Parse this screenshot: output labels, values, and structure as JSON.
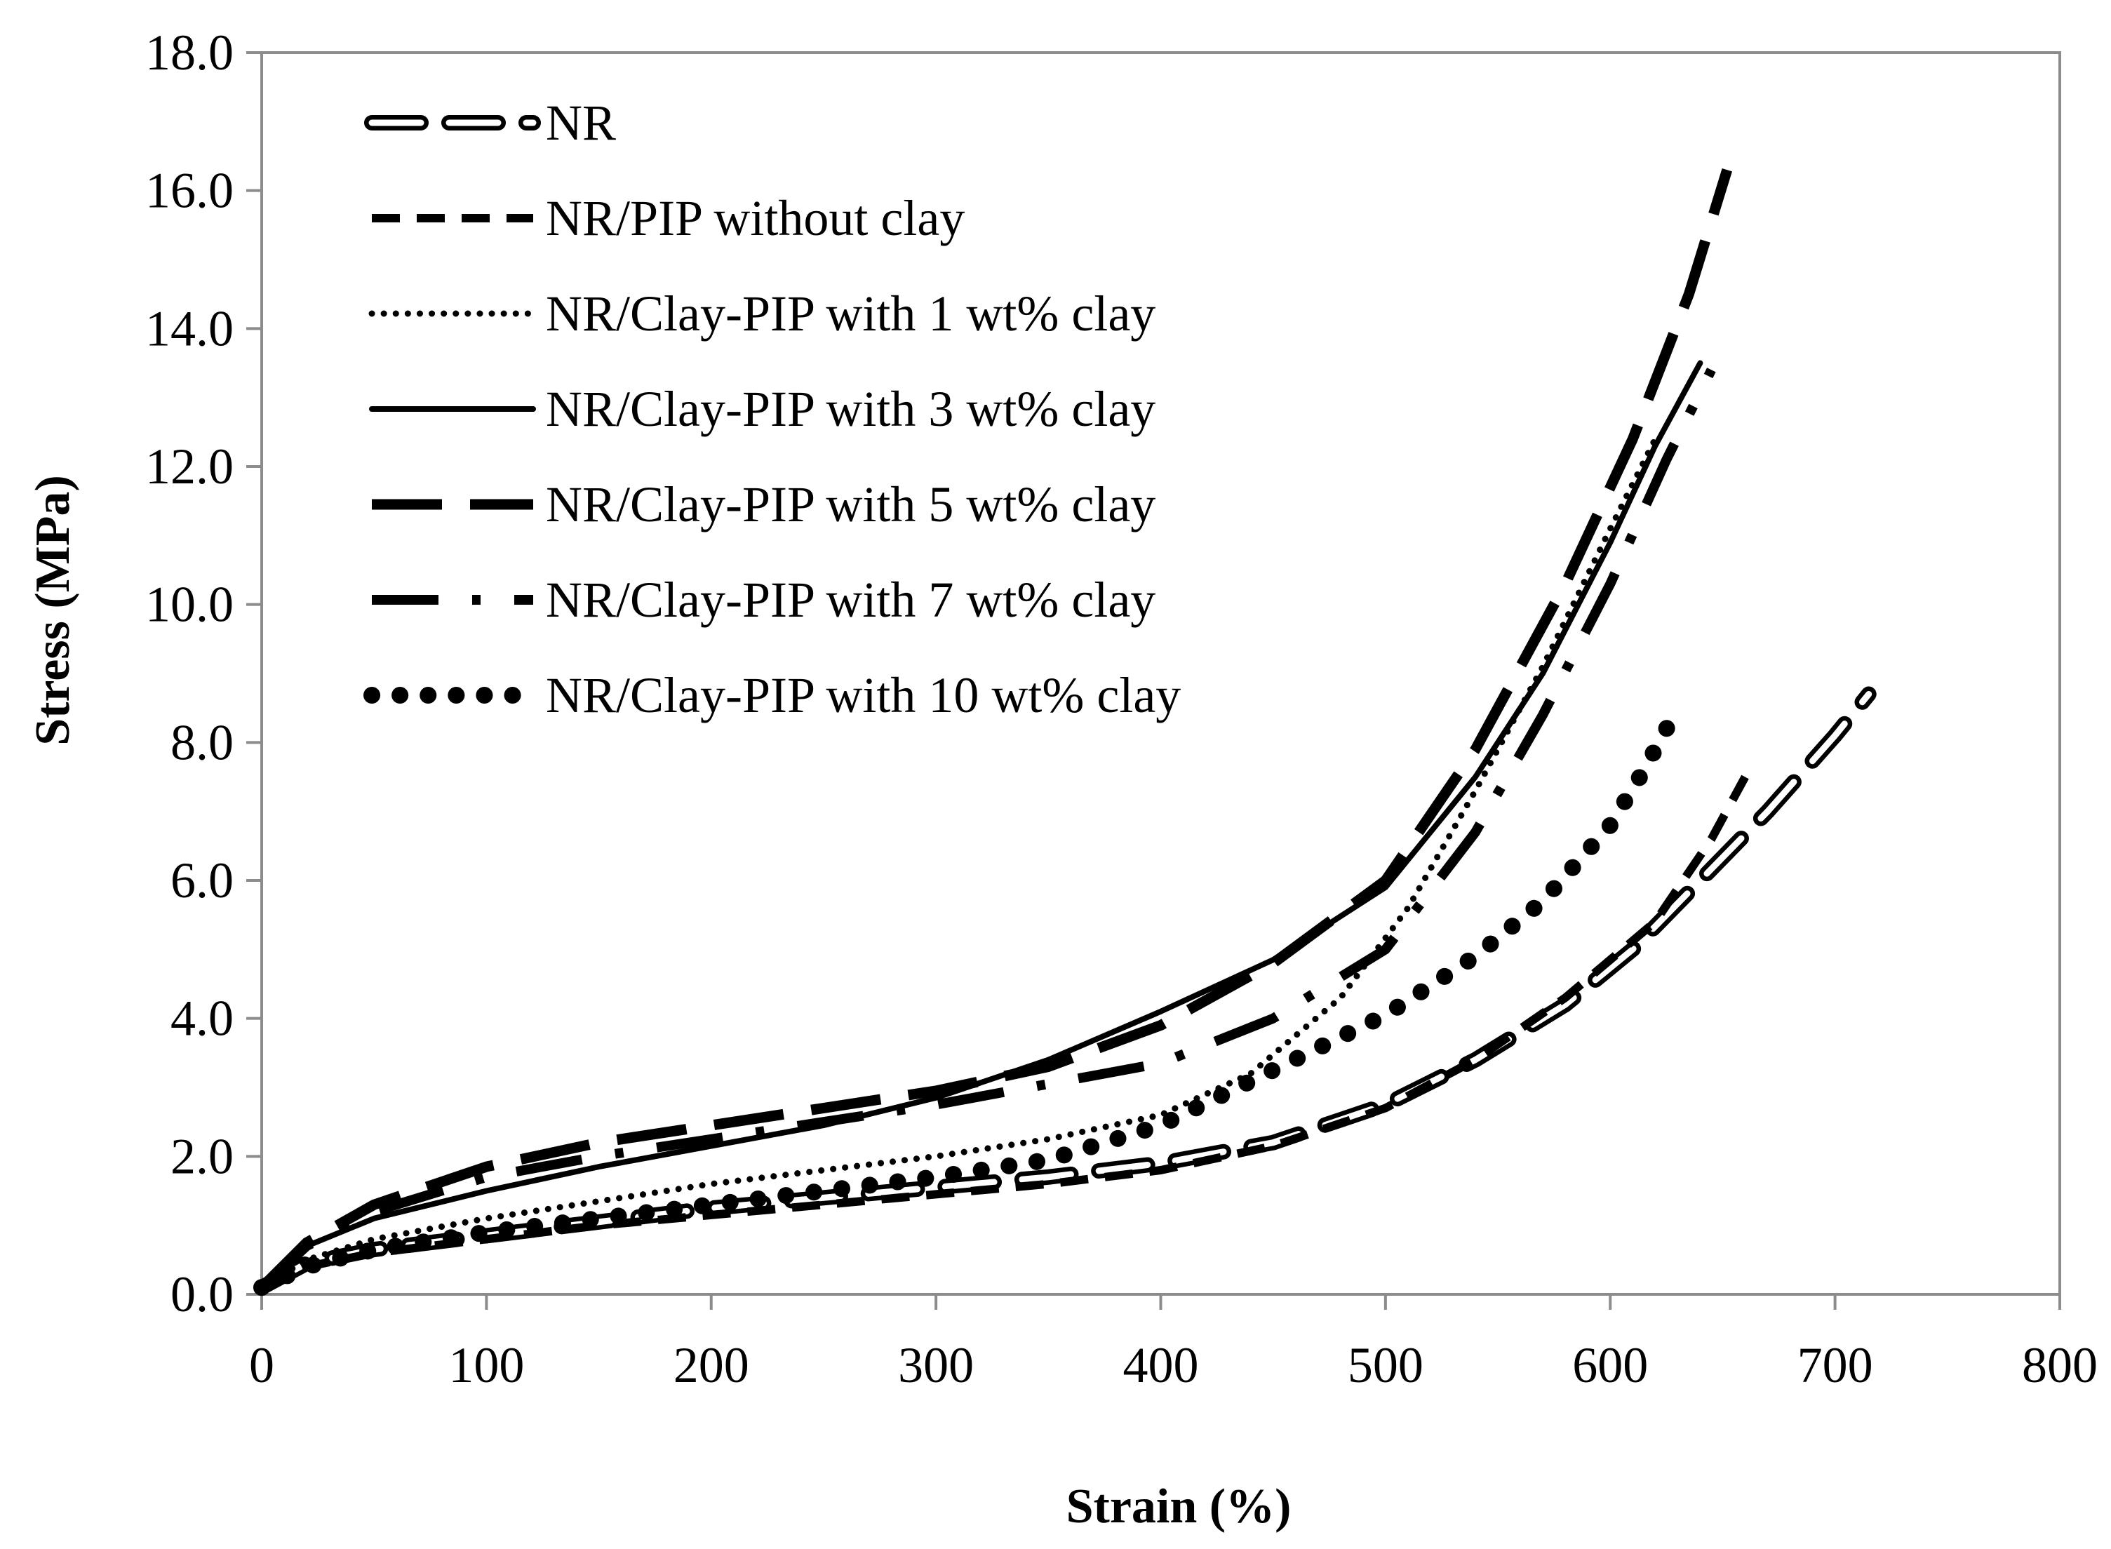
{
  "chart_data": {
    "type": "line",
    "title": "",
    "xlabel": "Strain (%)",
    "ylabel": "Stress (MPa)",
    "xlim": [
      0,
      800
    ],
    "ylim": [
      0,
      18
    ],
    "x_ticks": [
      "0",
      "100",
      "200",
      "300",
      "400",
      "500",
      "600",
      "700",
      "800"
    ],
    "y_ticks": [
      "0.0",
      "2.0",
      "4.0",
      "6.0",
      "8.0",
      "10.0",
      "12.0",
      "14.0",
      "16.0",
      "18.0"
    ],
    "grid": false,
    "legend_position": "top-left",
    "series": [
      {
        "name": "NR",
        "style": "open-dash",
        "points": [
          [
            0,
            0.1
          ],
          [
            20,
            0.45
          ],
          [
            50,
            0.65
          ],
          [
            100,
            0.85
          ],
          [
            150,
            1.05
          ],
          [
            200,
            1.25
          ],
          [
            250,
            1.4
          ],
          [
            300,
            1.55
          ],
          [
            350,
            1.7
          ],
          [
            400,
            1.9
          ],
          [
            450,
            2.2
          ],
          [
            500,
            2.75
          ],
          [
            540,
            3.4
          ],
          [
            580,
            4.2
          ],
          [
            610,
            5.0
          ],
          [
            640,
            6.0
          ],
          [
            670,
            7.0
          ],
          [
            700,
            8.1
          ],
          [
            715,
            8.7
          ]
        ]
      },
      {
        "name": "NR/PIP without clay",
        "style": "dash",
        "points": [
          [
            0,
            0.1
          ],
          [
            20,
            0.4
          ],
          [
            50,
            0.6
          ],
          [
            100,
            0.8
          ],
          [
            150,
            1.0
          ],
          [
            200,
            1.15
          ],
          [
            250,
            1.3
          ],
          [
            300,
            1.45
          ],
          [
            350,
            1.6
          ],
          [
            400,
            1.8
          ],
          [
            450,
            2.15
          ],
          [
            500,
            2.7
          ],
          [
            540,
            3.4
          ],
          [
            580,
            4.3
          ],
          [
            620,
            5.4
          ],
          [
            645,
            6.6
          ],
          [
            660,
            7.5
          ]
        ]
      },
      {
        "name": "NR/Clay-PIP with 1 wt% clay",
        "style": "dot",
        "points": [
          [
            0,
            0.1
          ],
          [
            20,
            0.5
          ],
          [
            50,
            0.8
          ],
          [
            100,
            1.1
          ],
          [
            150,
            1.35
          ],
          [
            200,
            1.6
          ],
          [
            250,
            1.8
          ],
          [
            300,
            2.0
          ],
          [
            350,
            2.25
          ],
          [
            400,
            2.6
          ],
          [
            440,
            3.2
          ],
          [
            480,
            4.3
          ],
          [
            510,
            5.6
          ],
          [
            540,
            7.3
          ],
          [
            570,
            9.1
          ],
          [
            600,
            11.1
          ],
          [
            620,
            12.4
          ]
        ]
      },
      {
        "name": "NR/Clay-PIP with 3 wt% clay",
        "style": "solid",
        "points": [
          [
            0,
            0.1
          ],
          [
            20,
            0.7
          ],
          [
            50,
            1.1
          ],
          [
            100,
            1.5
          ],
          [
            150,
            1.85
          ],
          [
            200,
            2.15
          ],
          [
            250,
            2.45
          ],
          [
            300,
            2.85
          ],
          [
            350,
            3.4
          ],
          [
            400,
            4.1
          ],
          [
            450,
            4.85
          ],
          [
            500,
            5.9
          ],
          [
            540,
            7.5
          ],
          [
            570,
            9.0
          ],
          [
            600,
            10.9
          ],
          [
            620,
            12.3
          ],
          [
            640,
            13.5
          ]
        ]
      },
      {
        "name": "NR/Clay-PIP with 5 wt% clay",
        "style": "long-dash",
        "points": [
          [
            0,
            0.1
          ],
          [
            20,
            0.75
          ],
          [
            50,
            1.3
          ],
          [
            100,
            1.85
          ],
          [
            150,
            2.2
          ],
          [
            200,
            2.45
          ],
          [
            250,
            2.7
          ],
          [
            300,
            2.95
          ],
          [
            350,
            3.3
          ],
          [
            400,
            3.9
          ],
          [
            450,
            4.8
          ],
          [
            500,
            6.0
          ],
          [
            540,
            7.9
          ],
          [
            580,
            10.3
          ],
          [
            610,
            12.4
          ],
          [
            635,
            14.5
          ],
          [
            652,
            16.3
          ]
        ]
      },
      {
        "name": "NR/Clay-PIP with 7 wt% clay",
        "style": "dash-dot",
        "points": [
          [
            0,
            0.1
          ],
          [
            20,
            0.7
          ],
          [
            50,
            1.2
          ],
          [
            100,
            1.7
          ],
          [
            150,
            2.0
          ],
          [
            200,
            2.25
          ],
          [
            250,
            2.5
          ],
          [
            300,
            2.75
          ],
          [
            350,
            3.05
          ],
          [
            400,
            3.35
          ],
          [
            450,
            4.0
          ],
          [
            500,
            5.0
          ],
          [
            540,
            6.7
          ],
          [
            570,
            8.4
          ],
          [
            600,
            10.3
          ],
          [
            625,
            12.1
          ],
          [
            645,
            13.4
          ]
        ]
      },
      {
        "name": "NR/Clay-PIP with 10 wt% clay",
        "style": "big-dot",
        "points": [
          [
            0,
            0.1
          ],
          [
            20,
            0.4
          ],
          [
            50,
            0.65
          ],
          [
            100,
            0.9
          ],
          [
            150,
            1.1
          ],
          [
            200,
            1.3
          ],
          [
            250,
            1.5
          ],
          [
            300,
            1.7
          ],
          [
            350,
            1.95
          ],
          [
            400,
            2.45
          ],
          [
            450,
            3.25
          ],
          [
            500,
            4.05
          ],
          [
            540,
            4.9
          ],
          [
            570,
            5.7
          ],
          [
            600,
            6.8
          ],
          [
            615,
            7.6
          ],
          [
            630,
            8.5
          ]
        ]
      }
    ]
  }
}
